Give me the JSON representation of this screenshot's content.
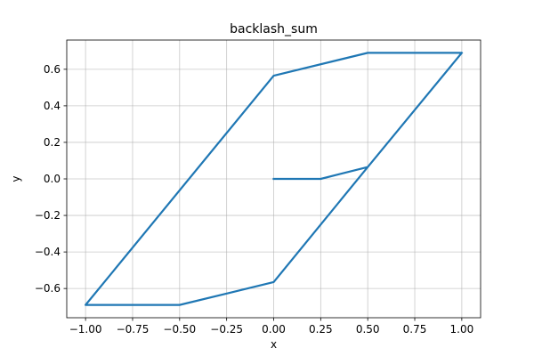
{
  "chart_data": {
    "type": "line",
    "title": "backlash_sum",
    "xlabel": "x",
    "ylabel": "y",
    "xlim": [
      -1.1,
      1.1
    ],
    "ylim": [
      -0.76,
      0.76
    ],
    "xticks": [
      -1.0,
      -0.75,
      -0.5,
      -0.25,
      0.0,
      0.25,
      0.5,
      0.75,
      1.0
    ],
    "xtick_labels": [
      "−1.00",
      "−0.75",
      "−0.50",
      "−0.25",
      "0.00",
      "0.25",
      "0.50",
      "0.75",
      "1.00"
    ],
    "yticks": [
      -0.6,
      -0.4,
      -0.2,
      0.0,
      0.2,
      0.4,
      0.6
    ],
    "ytick_labels": [
      "−0.6",
      "−0.4",
      "−0.2",
      "0.0",
      "0.2",
      "0.4",
      "0.6"
    ],
    "grid": true,
    "series": [
      {
        "color": "#1f77b4",
        "x": [
          0.0,
          0.25,
          0.5,
          1.0,
          0.5,
          0.0,
          -1.0,
          -0.5,
          0.0,
          0.5,
          1.0,
          0.5,
          0.0,
          -1.0,
          -0.5,
          0.0,
          0.5,
          1.0
        ],
        "y": [
          0.0,
          0.0,
          0.065,
          0.69,
          0.69,
          0.565,
          -0.69,
          -0.69,
          -0.565,
          0.065,
          0.69,
          0.69,
          0.565,
          -0.69,
          -0.69,
          -0.565,
          0.065,
          0.69
        ]
      }
    ]
  }
}
